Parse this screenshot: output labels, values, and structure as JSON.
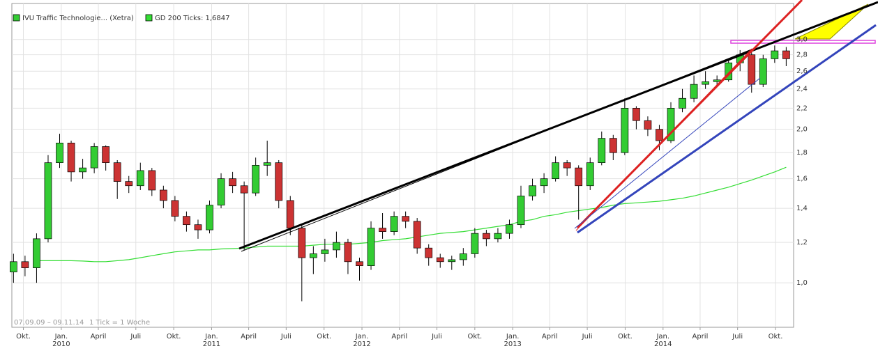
{
  "chart_data": {
    "type": "candlestick",
    "name": "IVU Traffic Technologie... (Xetra)",
    "up_color": "#33cc33",
    "down_color": "#cc3333",
    "log_scale": true,
    "grid": true,
    "range_label": "07.09.09 – 09.11.14",
    "tick_label": "1 Tick = 1 Woche",
    "x": [
      "2009-09-07",
      "2009-10-05",
      "2009-11-02",
      "2009-11-30",
      "2009-12-28",
      "2010-01-25",
      "2010-02-22",
      "2010-03-22",
      "2010-04-19",
      "2010-05-17",
      "2010-06-14",
      "2010-07-12",
      "2010-08-09",
      "2010-09-06",
      "2010-10-04",
      "2010-11-01",
      "2010-11-29",
      "2010-12-27",
      "2011-01-24",
      "2011-02-21",
      "2011-03-21",
      "2011-04-18",
      "2011-05-16",
      "2011-06-13",
      "2011-07-11",
      "2011-08-08",
      "2011-09-05",
      "2011-10-03",
      "2011-10-31",
      "2011-11-28",
      "2011-12-26",
      "2012-01-23",
      "2012-02-20",
      "2012-03-19",
      "2012-04-16",
      "2012-05-14",
      "2012-06-11",
      "2012-07-09",
      "2012-08-06",
      "2012-09-03",
      "2012-10-01",
      "2012-10-29",
      "2012-11-26",
      "2012-12-24",
      "2013-01-21",
      "2013-02-18",
      "2013-03-18",
      "2013-04-15",
      "2013-05-13",
      "2013-06-10",
      "2013-07-08",
      "2013-08-05",
      "2013-09-02",
      "2013-09-30",
      "2013-10-28",
      "2013-11-25",
      "2013-12-23",
      "2014-01-20",
      "2014-02-17",
      "2014-03-17",
      "2014-04-14",
      "2014-05-12",
      "2014-06-09",
      "2014-07-07",
      "2014-08-04",
      "2014-09-01",
      "2014-09-29",
      "2014-10-27"
    ],
    "open": [
      1.05,
      1.1,
      1.07,
      1.22,
      1.72,
      1.88,
      1.65,
      1.68,
      1.85,
      1.72,
      1.58,
      1.55,
      1.66,
      1.52,
      1.45,
      1.35,
      1.3,
      1.27,
      1.42,
      1.6,
      1.55,
      1.5,
      1.7,
      1.72,
      1.45,
      1.28,
      1.12,
      1.14,
      1.16,
      1.2,
      1.1,
      1.08,
      1.28,
      1.26,
      1.35,
      1.32,
      1.17,
      1.12,
      1.1,
      1.11,
      1.14,
      1.25,
      1.22,
      1.25,
      1.3,
      1.48,
      1.55,
      1.6,
      1.72,
      1.68,
      1.55,
      1.72,
      1.92,
      1.8,
      2.2,
      2.08,
      2.0,
      1.9,
      2.2,
      2.3,
      2.45,
      2.48,
      2.5,
      2.7,
      2.8,
      2.45,
      2.75,
      2.85
    ],
    "high": [
      1.14,
      1.13,
      1.25,
      1.78,
      1.96,
      1.9,
      1.75,
      1.88,
      1.86,
      1.74,
      1.62,
      1.72,
      1.68,
      1.55,
      1.48,
      1.38,
      1.33,
      1.45,
      1.64,
      1.65,
      1.58,
      1.76,
      1.9,
      1.74,
      1.48,
      1.3,
      1.18,
      1.22,
      1.26,
      1.22,
      1.12,
      1.32,
      1.37,
      1.38,
      1.38,
      1.34,
      1.19,
      1.14,
      1.13,
      1.17,
      1.28,
      1.27,
      1.28,
      1.33,
      1.55,
      1.6,
      1.64,
      1.77,
      1.74,
      1.7,
      1.76,
      1.98,
      1.95,
      2.3,
      2.22,
      2.12,
      2.04,
      2.26,
      2.4,
      2.55,
      2.6,
      2.55,
      2.75,
      2.86,
      2.84,
      2.8,
      2.92,
      2.9
    ],
    "low": [
      1.0,
      1.03,
      1.0,
      1.2,
      1.68,
      1.58,
      1.6,
      1.64,
      1.66,
      1.46,
      1.5,
      1.52,
      1.48,
      1.4,
      1.32,
      1.26,
      1.22,
      1.25,
      1.4,
      1.5,
      1.16,
      1.48,
      1.62,
      1.4,
      1.24,
      0.92,
      1.04,
      1.1,
      1.12,
      1.04,
      1.01,
      1.06,
      1.22,
      1.24,
      1.28,
      1.14,
      1.08,
      1.07,
      1.06,
      1.08,
      1.12,
      1.18,
      1.2,
      1.22,
      1.28,
      1.45,
      1.5,
      1.58,
      1.62,
      1.33,
      1.52,
      1.7,
      1.74,
      1.78,
      2.0,
      1.94,
      1.82,
      1.88,
      2.16,
      2.26,
      2.4,
      2.44,
      2.48,
      2.6,
      2.36,
      2.42,
      2.7,
      2.66
    ],
    "close": [
      1.1,
      1.07,
      1.22,
      1.72,
      1.88,
      1.65,
      1.68,
      1.85,
      1.72,
      1.58,
      1.55,
      1.66,
      1.52,
      1.45,
      1.35,
      1.3,
      1.27,
      1.42,
      1.6,
      1.55,
      1.5,
      1.7,
      1.72,
      1.45,
      1.28,
      1.12,
      1.14,
      1.16,
      1.2,
      1.1,
      1.08,
      1.28,
      1.26,
      1.35,
      1.32,
      1.17,
      1.12,
      1.1,
      1.11,
      1.14,
      1.25,
      1.22,
      1.25,
      1.3,
      1.48,
      1.55,
      1.6,
      1.72,
      1.68,
      1.55,
      1.72,
      1.92,
      1.8,
      2.2,
      2.08,
      2.0,
      1.9,
      2.2,
      2.3,
      2.45,
      2.48,
      2.5,
      2.7,
      2.8,
      2.45,
      2.75,
      2.85,
      2.75
    ],
    "series": [
      {
        "name": "GD 200 Ticks: 1,6847",
        "color": "#33dd33",
        "values": [
          null,
          null,
          1.105,
          1.105,
          1.105,
          1.105,
          1.103,
          1.1,
          1.1,
          1.105,
          1.11,
          1.12,
          1.13,
          1.14,
          1.15,
          1.155,
          1.16,
          1.16,
          1.165,
          1.167,
          1.17,
          1.175,
          1.18,
          1.18,
          1.18,
          1.18,
          1.185,
          1.19,
          1.19,
          1.19,
          1.195,
          1.2,
          1.21,
          1.215,
          1.22,
          1.23,
          1.24,
          1.25,
          1.255,
          1.26,
          1.27,
          1.28,
          1.29,
          1.3,
          1.32,
          1.33,
          1.35,
          1.36,
          1.375,
          1.385,
          1.395,
          1.405,
          1.42,
          1.43,
          1.435,
          1.44,
          1.445,
          1.455,
          1.465,
          1.48,
          1.5,
          1.52,
          1.54,
          1.565,
          1.59,
          1.62,
          1.65,
          1.6847
        ]
      }
    ],
    "xlim": [
      "2009-09-03",
      "2014-11-14"
    ],
    "xticks": [
      {
        "value": "2009-10-01",
        "label": "Okt."
      },
      {
        "value": "2010-01-01",
        "label": "Jan. 2010"
      },
      {
        "value": "2010-04-01",
        "label": "April"
      },
      {
        "value": "2010-07-01",
        "label": "Juli"
      },
      {
        "value": "2010-10-01",
        "label": "Okt."
      },
      {
        "value": "2011-01-01",
        "label": "Jan. 2011"
      },
      {
        "value": "2011-04-01",
        "label": "April"
      },
      {
        "value": "2011-07-01",
        "label": "Juli"
      },
      {
        "value": "2011-10-01",
        "label": "Okt."
      },
      {
        "value": "2012-01-01",
        "label": "Jan. 2012"
      },
      {
        "value": "2012-04-01",
        "label": "April"
      },
      {
        "value": "2012-07-01",
        "label": "Juli"
      },
      {
        "value": "2012-10-01",
        "label": "Okt."
      },
      {
        "value": "2013-01-01",
        "label": "Jan. 2013"
      },
      {
        "value": "2013-04-01",
        "label": "April"
      },
      {
        "value": "2013-07-01",
        "label": "Juli"
      },
      {
        "value": "2013-10-01",
        "label": "Okt."
      },
      {
        "value": "2014-01-01",
        "label": "Jan. 2014"
      },
      {
        "value": "2014-04-01",
        "label": "April"
      },
      {
        "value": "2014-07-01",
        "label": "Juli"
      },
      {
        "value": "2014-10-01",
        "label": "Okt."
      }
    ],
    "ylim": [
      0.818,
      3.53
    ],
    "yticks": [
      {
        "value": 1.0,
        "label": "1,0"
      },
      {
        "value": 1.2,
        "label": "1,2"
      },
      {
        "value": 1.4,
        "label": "1,4"
      },
      {
        "value": 1.6,
        "label": "1,6"
      },
      {
        "value": 1.8,
        "label": "1,8"
      },
      {
        "value": 2.0,
        "label": "2,0"
      },
      {
        "value": 2.2,
        "label": "2,2"
      },
      {
        "value": 2.4,
        "label": "2,4"
      },
      {
        "value": 2.6,
        "label": "2,6"
      },
      {
        "value": 2.8,
        "label": "2,8"
      },
      {
        "value": 3.0,
        "label": "3,0"
      }
    ]
  }
}
